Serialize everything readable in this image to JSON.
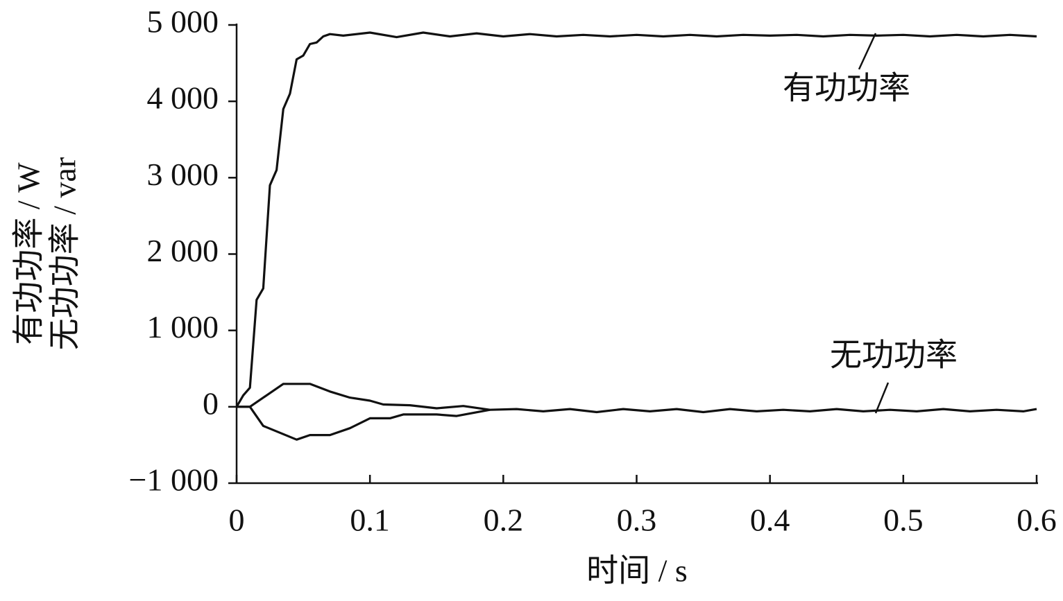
{
  "chart_data": {
    "type": "line",
    "xlabel": "时间 / s",
    "ylabel": [
      "有功功率 / W",
      "无功功率 / var"
    ],
    "xlim": [
      0,
      0.6
    ],
    "xticks": [
      0,
      0.1,
      0.2,
      0.3,
      0.4,
      0.5,
      0.6
    ],
    "ylim": [
      -1000,
      5000
    ],
    "yticks": [
      {
        "value": -1000,
        "label": "−1 000"
      },
      0,
      {
        "value": 1000,
        "label": "1 000"
      },
      {
        "value": 2000,
        "label": "2 000"
      },
      {
        "value": 3000,
        "label": "3 000"
      },
      {
        "value": 4000,
        "label": "4 000"
      },
      {
        "value": 5000,
        "label": "5 000"
      }
    ],
    "grid": false,
    "series": [
      {
        "name": "有功功率",
        "color": "#111111",
        "x": [
          0,
          0.005,
          0.01,
          0.015,
          0.02,
          0.025,
          0.03,
          0.035,
          0.04,
          0.045,
          0.05,
          0.055,
          0.06,
          0.065,
          0.07,
          0.08,
          0.1,
          0.12,
          0.14,
          0.16,
          0.18,
          0.2,
          0.22,
          0.24,
          0.26,
          0.28,
          0.3,
          0.32,
          0.34,
          0.36,
          0.38,
          0.4,
          0.42,
          0.44,
          0.46,
          0.48,
          0.5,
          0.52,
          0.54,
          0.56,
          0.58,
          0.6
        ],
        "values": [
          0,
          150,
          250,
          1400,
          1550,
          2900,
          3100,
          3900,
          4100,
          4550,
          4600,
          4750,
          4770,
          4850,
          4880,
          4860,
          4900,
          4840,
          4900,
          4850,
          4890,
          4850,
          4880,
          4850,
          4870,
          4850,
          4870,
          4850,
          4870,
          4850,
          4870,
          4860,
          4870,
          4850,
          4870,
          4860,
          4870,
          4850,
          4870,
          4850,
          4870,
          4850
        ]
      },
      {
        "name": "无功功率",
        "color": "#111111",
        "x": [
          0,
          0.01,
          0.035,
          0.055,
          0.07,
          0.085,
          0.1,
          0.11,
          0.13,
          0.15,
          0.17,
          0.19,
          0.21,
          0.23,
          0.25,
          0.27,
          0.29,
          0.31,
          0.33,
          0.35,
          0.37,
          0.39,
          0.41,
          0.43,
          0.45,
          0.47,
          0.49,
          0.51,
          0.53,
          0.55,
          0.57,
          0.59,
          0.6
        ],
        "values": [
          0,
          0,
          300,
          300,
          200,
          120,
          80,
          30,
          20,
          -20,
          10,
          -40,
          -30,
          -60,
          -30,
          -70,
          -30,
          -60,
          -30,
          -70,
          -30,
          -60,
          -40,
          -60,
          -30,
          -60,
          -40,
          -60,
          -30,
          -60,
          -40,
          -60,
          -30
        ]
      },
      {
        "color": "#111111",
        "x": [
          0,
          0.01,
          0.02,
          0.045,
          0.055,
          0.07,
          0.085,
          0.1,
          0.115,
          0.125,
          0.15,
          0.165,
          0.19
        ],
        "values": [
          0,
          0,
          -250,
          -430,
          -370,
          -370,
          -280,
          -150,
          -150,
          -100,
          -100,
          -120,
          -40
        ]
      }
    ]
  }
}
